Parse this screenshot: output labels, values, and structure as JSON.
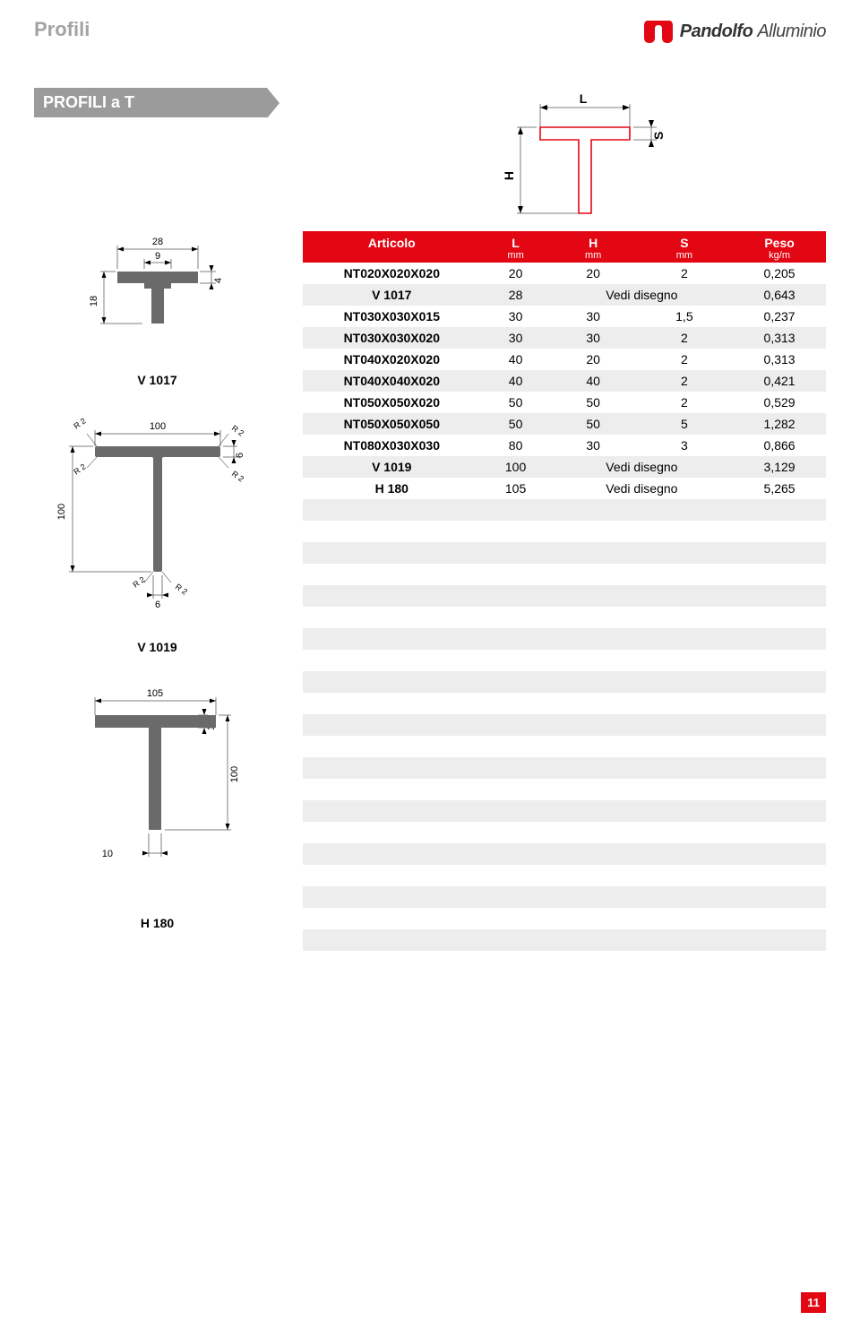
{
  "header": {
    "section": "Profili",
    "brand": "Pandolfo Alluminio",
    "brand_first": "Pandolfo",
    "brand_second": "Alluminio"
  },
  "title": "PROFILI a T",
  "main_diagram": {
    "L": "L",
    "H": "H",
    "S": "S",
    "profile_color": "#e30613"
  },
  "drawings": {
    "d1": {
      "caption": "V 1017",
      "dim_top": "28",
      "dim_inner": "9",
      "dim_h": "18",
      "dim_s": "4"
    },
    "d2": {
      "caption": "V 1019",
      "dim_top": "100",
      "dim_h": "100",
      "dim_s": "6",
      "r": "R 2",
      "dim_t": "6"
    },
    "d3": {
      "caption": "H 180",
      "dim_top": "105",
      "dim_h": "100",
      "dim_s": "10",
      "dim_bot": "10"
    }
  },
  "table": {
    "columns": [
      {
        "label": "Articolo",
        "unit": ""
      },
      {
        "label": "L",
        "unit": "mm"
      },
      {
        "label": "H",
        "unit": "mm"
      },
      {
        "label": "S",
        "unit": "mm"
      },
      {
        "label": "Peso",
        "unit": "kg/m"
      }
    ],
    "rows": [
      [
        "NT020X020X020",
        "20",
        "20",
        "2",
        "0,205"
      ],
      [
        "V 1017",
        "28",
        "Vedi disegno",
        "",
        "0,643"
      ],
      [
        "NT030X030X015",
        "30",
        "30",
        "1,5",
        "0,237"
      ],
      [
        "NT030X030X020",
        "30",
        "30",
        "2",
        "0,313"
      ],
      [
        "NT040X020X020",
        "40",
        "20",
        "2",
        "0,313"
      ],
      [
        "NT040X040X020",
        "40",
        "40",
        "2",
        "0,421"
      ],
      [
        "NT050X050X020",
        "50",
        "50",
        "2",
        "0,529"
      ],
      [
        "NT050X050X050",
        "50",
        "50",
        "5",
        "1,282"
      ],
      [
        "NT080X030X030",
        "80",
        "30",
        "3",
        "0,866"
      ],
      [
        "V 1019",
        "100",
        "Vedi disegno",
        "",
        "3,129"
      ],
      [
        "H 180",
        "105",
        "Vedi disegno",
        "",
        "5,265"
      ]
    ],
    "empty_rows": 21,
    "header_bg": "#e30613",
    "even_bg": "#ededed",
    "odd_bg": "#ffffff"
  },
  "page_number": "11"
}
